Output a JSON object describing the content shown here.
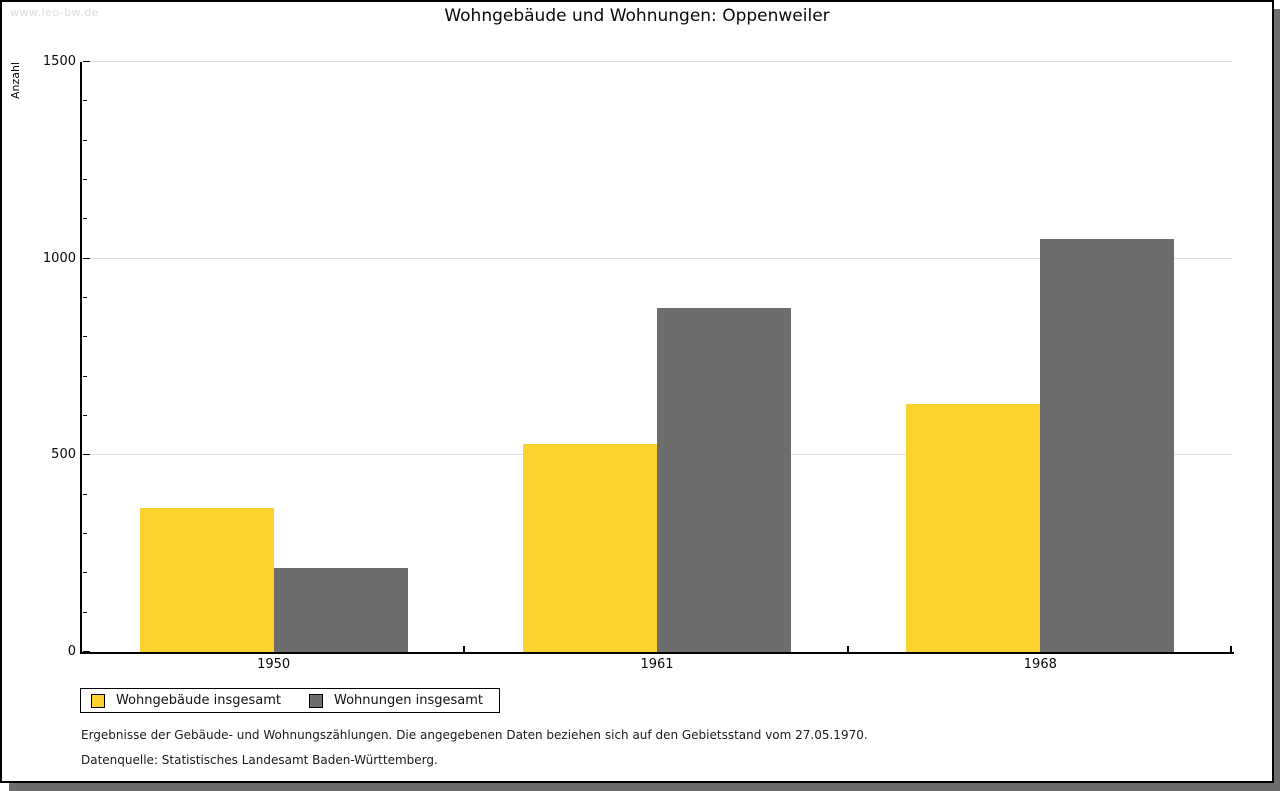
{
  "page": {
    "watermark": "www.leo-bw.de",
    "title": "Wohngebäude und Wohnungen: Oppenweiler"
  },
  "chart_data": {
    "type": "bar",
    "title": "Wohngebäude und Wohnungen: Oppenweiler",
    "xlabel": "",
    "ylabel": "Anzahl",
    "categories": [
      "1950",
      "1961",
      "1968"
    ],
    "series": [
      {
        "name": "Wohngebäude insgesamt",
        "color": "#fcd32e",
        "values": [
          365,
          530,
          630
        ]
      },
      {
        "name": "Wohnungen insgesamt",
        "color": "#6d6d6d",
        "values": [
          213,
          875,
          1050
        ]
      }
    ],
    "ylim": [
      0,
      1500
    ],
    "yticks": [
      0,
      500,
      1000,
      1500
    ],
    "ytick_labels": [
      "0",
      "500",
      "1000",
      "1500"
    ],
    "minor_tick_interval": 100,
    "grid": "horizontal",
    "gridline_color": "#e0e0e0",
    "legend_position": "bottom-left"
  },
  "footnotes": {
    "line1": "Ergebnisse der Gebäude- und Wohnungszählungen. Die angegebenen Daten beziehen sich auf den Gebietsstand vom 27.05.1970.",
    "line2": "Datenquelle: Statistisches Landesamt Baden-Württemberg."
  }
}
